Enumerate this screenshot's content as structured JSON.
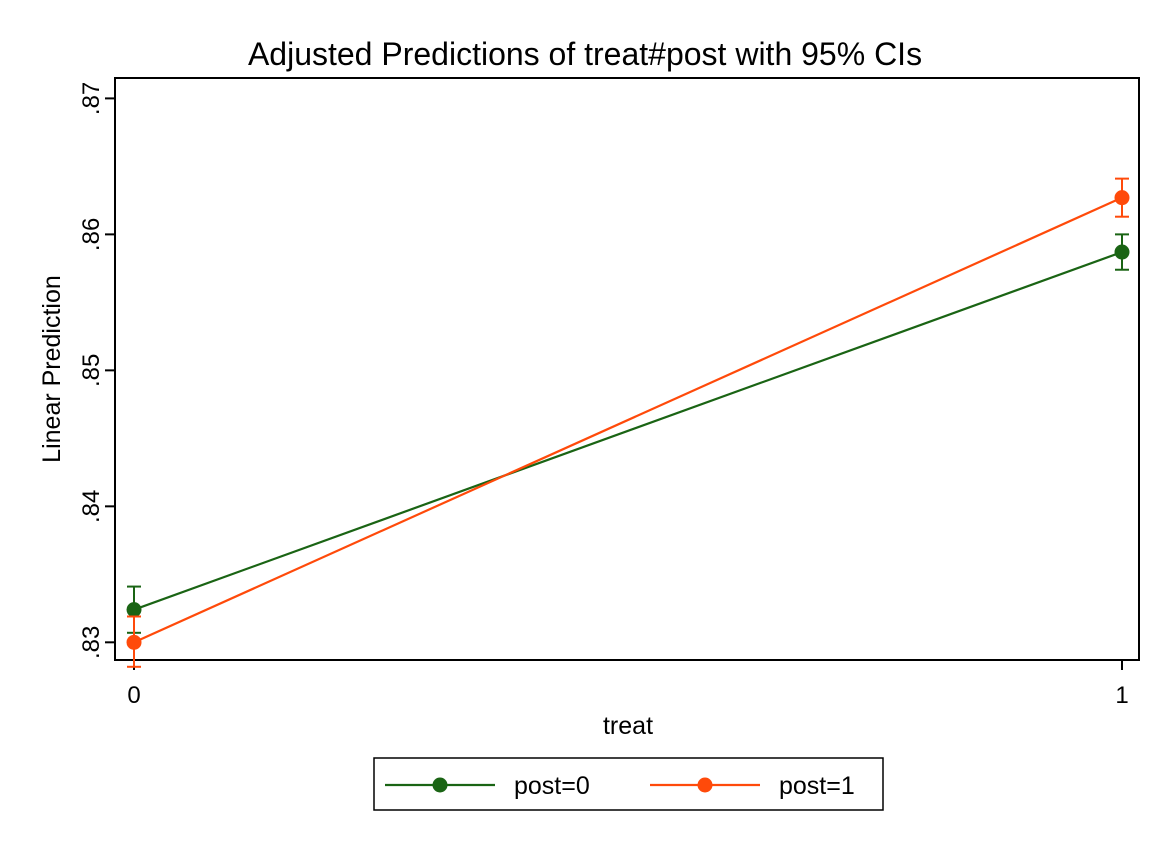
{
  "chart_data": {
    "type": "line",
    "title": "Adjusted Predictions of treat#post with 95% CIs",
    "xlabel": "treat",
    "ylabel": "Linear Prediction",
    "x": [
      0,
      1
    ],
    "x_tick_labels": [
      "0",
      "1"
    ],
    "ylim": [
      0.8287,
      0.8715
    ],
    "y_ticks": [
      0.83,
      0.84,
      0.85,
      0.86,
      0.87
    ],
    "y_tick_labels": [
      ".83",
      ".84",
      ".85",
      ".86",
      ".87"
    ],
    "grid": false,
    "legend_position": "bottom",
    "series": [
      {
        "name": "post=0",
        "color": "#1a6414",
        "values": [
          0.8324,
          0.8587
        ],
        "ci_lower": [
          0.8307,
          0.8574
        ],
        "ci_upper": [
          0.8341,
          0.86
        ]
      },
      {
        "name": "post=1",
        "color": "#ff4a0a",
        "values": [
          0.83,
          0.8627
        ],
        "ci_lower": [
          0.8282,
          0.8613
        ],
        "ci_upper": [
          0.8319,
          0.8641
        ]
      }
    ]
  }
}
